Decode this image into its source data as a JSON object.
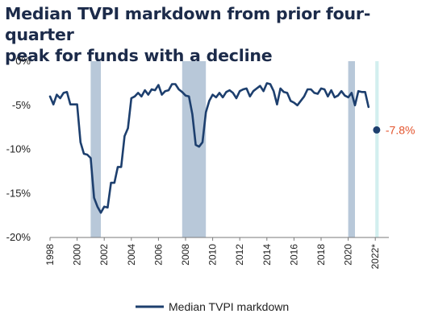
{
  "title_line1": "Median TVPI markdown from prior four-quarter",
  "title_line2": "peak for funds with a decline",
  "chart_data": {
    "type": "line",
    "title": "Median TVPI markdown from prior four-quarter peak for funds with a decline",
    "xlabel": "",
    "ylabel": "",
    "xlim": [
      1998,
      2023
    ],
    "ylim": [
      -20,
      0
    ],
    "y_ticks": [
      0,
      -5,
      -10,
      -15,
      -20
    ],
    "y_tick_labels": [
      "0%",
      "-5%",
      "-10%",
      "-15%",
      "-20%"
    ],
    "x_ticks": [
      1998,
      2000,
      2002,
      2004,
      2006,
      2008,
      2010,
      2012,
      2014,
      2016,
      2018,
      2020,
      2022
    ],
    "x_tick_labels": [
      "1998",
      "2000",
      "2002",
      "2004",
      "2006",
      "2008",
      "2010",
      "2012",
      "2014",
      "2016",
      "2018",
      "2020",
      "2022*"
    ],
    "grid": false,
    "legend_position": "bottom-center",
    "shaded_periods": [
      {
        "start": 2001.0,
        "end": 2001.75,
        "color": "#b8c8d9"
      },
      {
        "start": 2007.75,
        "end": 2009.5,
        "color": "#b8c8d9"
      },
      {
        "start": 2020.0,
        "end": 2020.5,
        "color": "#b8c8d9"
      },
      {
        "start": 2022.0,
        "end": 2022.25,
        "color": "#d3efef"
      }
    ],
    "series": [
      {
        "name": "Median TVPI markdown",
        "color": "#1d3f6e",
        "x": [
          1998.0,
          1998.25,
          1998.5,
          1998.75,
          1999.0,
          1999.25,
          1999.5,
          1999.75,
          2000.0,
          2000.25,
          2000.5,
          2000.75,
          2001.0,
          2001.25,
          2001.5,
          2001.75,
          2002.0,
          2002.25,
          2002.5,
          2002.75,
          2003.0,
          2003.25,
          2003.5,
          2003.75,
          2004.0,
          2004.25,
          2004.5,
          2004.75,
          2005.0,
          2005.25,
          2005.5,
          2005.75,
          2006.0,
          2006.25,
          2006.5,
          2006.75,
          2007.0,
          2007.25,
          2007.5,
          2007.75,
          2008.0,
          2008.25,
          2008.5,
          2008.75,
          2009.0,
          2009.25,
          2009.5,
          2009.75,
          2010.0,
          2010.25,
          2010.5,
          2010.75,
          2011.0,
          2011.25,
          2011.5,
          2011.75,
          2012.0,
          2012.25,
          2012.5,
          2012.75,
          2013.0,
          2013.25,
          2013.5,
          2013.75,
          2014.0,
          2014.25,
          2014.5,
          2014.75,
          2015.0,
          2015.25,
          2015.5,
          2015.75,
          2016.0,
          2016.25,
          2016.5,
          2016.75,
          2017.0,
          2017.25,
          2017.5,
          2017.75,
          2018.0,
          2018.25,
          2018.5,
          2018.75,
          2019.0,
          2019.25,
          2019.5,
          2019.75,
          2020.0,
          2020.25,
          2020.5,
          2020.75,
          2021.0,
          2021.25,
          2021.5
        ],
        "values": [
          -4.0,
          -4.9,
          -3.8,
          -4.2,
          -3.6,
          -3.5,
          -4.9,
          -4.9,
          -4.9,
          -9.2,
          -10.5,
          -10.6,
          -11.0,
          -15.5,
          -16.5,
          -17.2,
          -16.5,
          -16.6,
          -13.8,
          -13.8,
          -12.0,
          -12.0,
          -8.5,
          -7.6,
          -4.2,
          -4.0,
          -3.6,
          -4.0,
          -3.3,
          -3.8,
          -3.2,
          -3.3,
          -2.7,
          -3.8,
          -3.4,
          -3.3,
          -2.6,
          -2.6,
          -3.2,
          -3.5,
          -3.9,
          -4.0,
          -6.0,
          -9.5,
          -9.7,
          -9.2,
          -5.8,
          -4.5,
          -3.8,
          -4.1,
          -3.6,
          -4.1,
          -3.5,
          -3.3,
          -3.6,
          -4.2,
          -3.4,
          -3.2,
          -3.1,
          -4.0,
          -3.4,
          -3.1,
          -2.8,
          -3.4,
          -2.5,
          -2.6,
          -3.4,
          -4.9,
          -3.1,
          -3.5,
          -3.6,
          -4.5,
          -4.7,
          -5.0,
          -4.5,
          -4.0,
          -3.2,
          -3.2,
          -3.6,
          -3.7,
          -3.1,
          -3.2,
          -4.0,
          -3.3,
          -4.1,
          -3.9,
          -3.4,
          -3.9,
          -4.1,
          -3.6,
          -5.0,
          -3.4,
          -3.5,
          -3.5,
          -5.2
        ]
      }
    ],
    "highlight_point": {
      "x": 2022.1,
      "y": -7.8,
      "label": "-7.8%",
      "label_color": "#e3522b"
    }
  }
}
